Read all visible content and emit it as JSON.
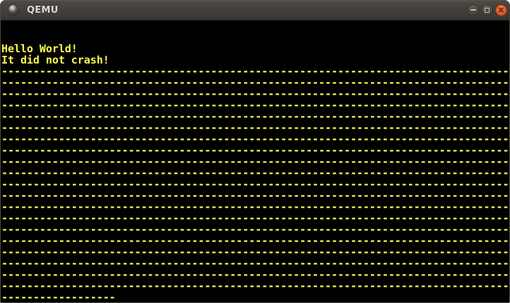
{
  "window": {
    "title": "QEMU",
    "controls": {
      "minimize": "minimize",
      "maximize": "maximize",
      "close": "close"
    }
  },
  "terminal": {
    "lines": [
      "",
      "",
      "Hello World!",
      "It did not crash!",
      "--------------------------------------------------------------------------------",
      "--------------------------------------------------------------------------------",
      "--------------------------------------------------------------------------------",
      "--------------------------------------------------------------------------------",
      "--------------------------------------------------------------------------------",
      "--------------------------------------------------------------------------------",
      "--------------------------------------------------------------------------------",
      "--------------------------------------------------------------------------------",
      "--------------------------------------------------------------------------------",
      "--------------------------------------------------------------------------------",
      "--------------------------------------------------------------------------------",
      "--------------------------------------------------------------------------------",
      "--------------------------------------------------------------------------------",
      "--------------------------------------------------------------------------------",
      "--------------------------------------------------------------------------------",
      "--------------------------------------------------------------------------------",
      "--------------------------------------------------------------------------------",
      "--------------------------------------------------------------------------------",
      "--------------------------------------------------------------------------------",
      "--------------------------------------------------------------------------------",
      "------------------"
    ]
  },
  "colors": {
    "terminal_text": "#fcfc54",
    "terminal_bg": "#000000",
    "titlebar_top": "#4a4641",
    "titlebar_bottom": "#3e3a36",
    "title_text": "#dcd8d3",
    "close_button": "#e2602f",
    "control_button_gray": "#4e4a44"
  }
}
